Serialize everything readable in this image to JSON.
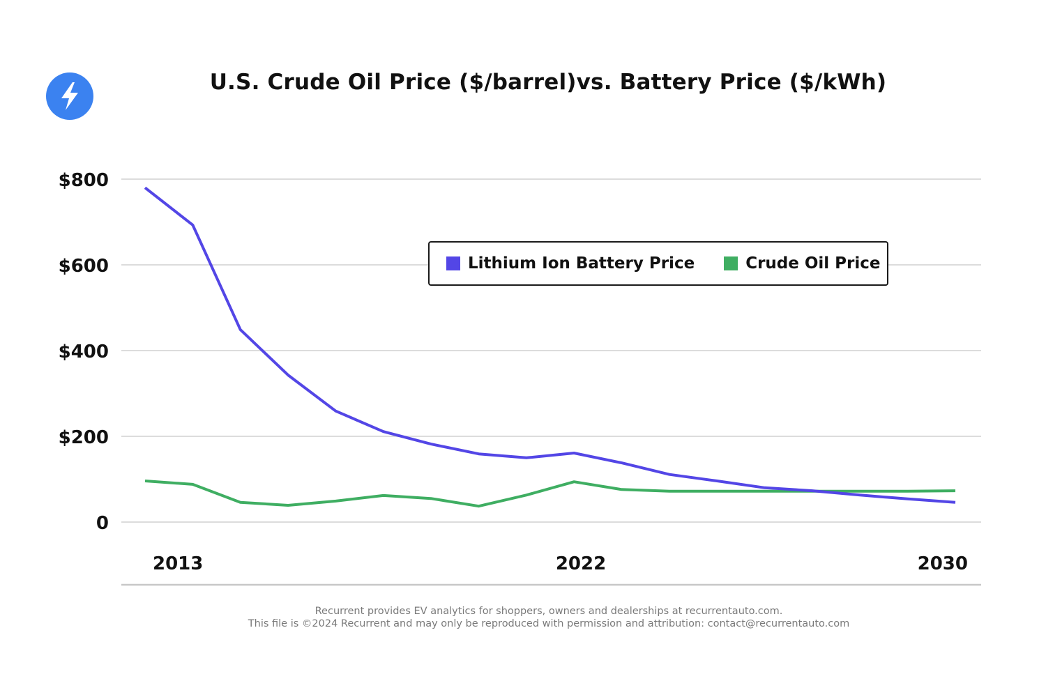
{
  "logo": {
    "icon": "lightning-bolt-icon",
    "color": "#3b82f0"
  },
  "footer": {
    "line1": "Recurrent provides EV analytics for shoppers, owners and dealerships at recurrentauto.com.",
    "line2": "This file is ©2024 Recurrent and may only be reproduced with permission and attribution: contact@recurrentauto.com"
  },
  "chart_data": {
    "type": "line",
    "title": "U.S. Crude Oil Price ($/barrel)vs. Battery Price ($/kWh)",
    "xlabel": "",
    "ylabel": "",
    "x": [
      2013,
      2014,
      2015,
      2016,
      2017,
      2018,
      2019,
      2020,
      2021,
      2022,
      2023,
      2024,
      2025,
      2026,
      2027,
      2028,
      2029,
      2030
    ],
    "x_tick_labels": [
      "2013",
      "2022",
      "2030"
    ],
    "y_ticks": [
      0,
      200,
      400,
      600,
      800
    ],
    "y_tick_labels": [
      "0",
      "$200",
      "$400",
      "$600",
      "$800"
    ],
    "ylim": [
      0,
      800
    ],
    "grid": true,
    "legend_position": "top-right",
    "series": [
      {
        "name": "Lithium Ion Battery Price",
        "color": "#5346e6",
        "values": [
          780,
          693,
          449,
          343,
          259,
          211,
          182,
          159,
          150,
          161,
          138,
          111,
          96,
          80,
          73,
          63,
          54,
          46
        ]
      },
      {
        "name": "Crude Oil Price",
        "color": "#3fae62",
        "values": [
          96,
          88,
          46,
          39,
          49,
          62,
          55,
          37,
          63,
          94,
          76,
          72,
          72,
          72,
          72,
          72,
          72,
          73
        ]
      }
    ]
  }
}
